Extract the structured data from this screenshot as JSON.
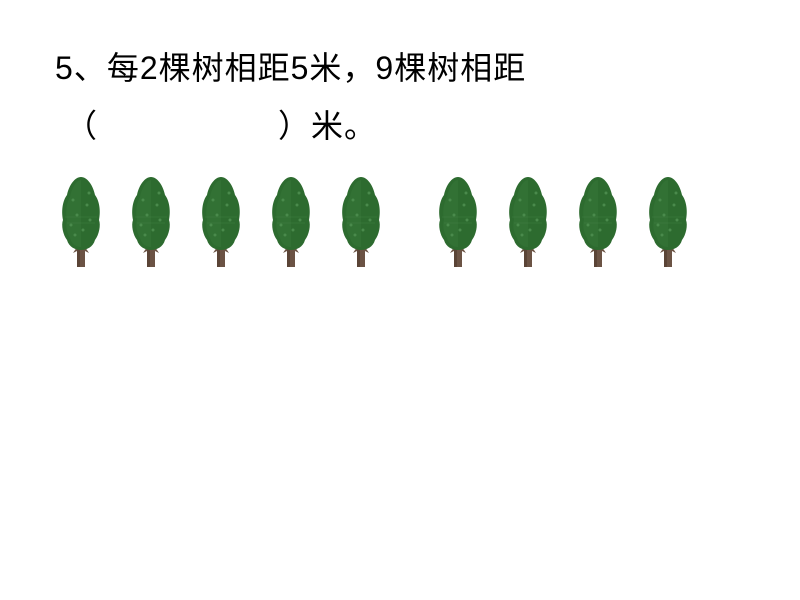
{
  "question": {
    "number": "5、",
    "line1": "每2棵树相距5米，9棵树相距",
    "bracket_open": "（",
    "bracket_close": "）",
    "unit": "米。"
  },
  "trees": {
    "group1_count": 5,
    "group2_count": 4,
    "foliage_color": "#2d6b2f",
    "foliage_highlight": "#3a7a3c",
    "foliage_texture": "#4a8a4c",
    "trunk_color": "#6b5344",
    "trunk_shadow": "#5a4436",
    "background_color": "#ffffff",
    "text_color": "#000000"
  }
}
